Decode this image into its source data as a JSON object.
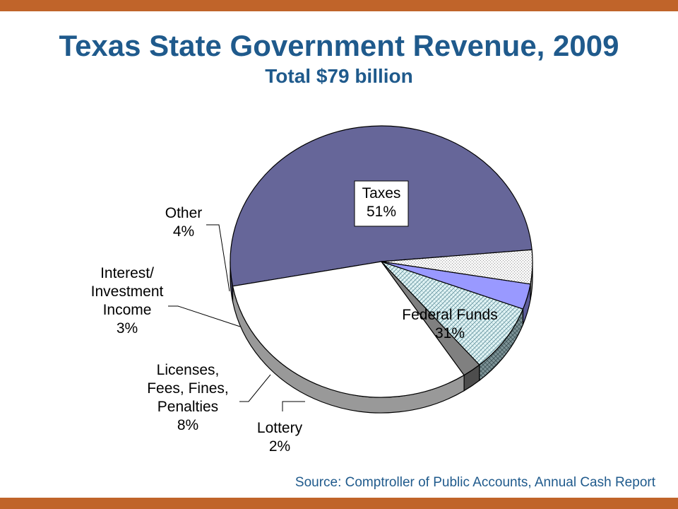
{
  "header": {
    "title": "Texas State Government Revenue, 2009",
    "subtitle": "Total $79 billion"
  },
  "footer": {
    "source": "Source: Comptroller of Public Accounts, Annual Cash Report"
  },
  "colors": {
    "accent_bar": "#C0642A",
    "title": "#1F5A8C",
    "source_text": "#1F5A8C",
    "taxes": "#666699",
    "federal": "#FFFFFF",
    "lottery": "#808080",
    "licenses": "#D9F0F2",
    "interest": "#9999FF",
    "other": "#EEEEEE"
  },
  "chart_data": {
    "type": "pie",
    "title": "Texas State Government Revenue, 2009",
    "subtitle": "Total $79 billion",
    "categories": [
      "Taxes",
      "Federal Funds",
      "Lottery",
      "Licenses, Fees, Fines, Penalties",
      "Interest/ Investment Income",
      "Other"
    ],
    "values": [
      51,
      31,
      2,
      8,
      3,
      4
    ],
    "units": "%",
    "slices": [
      {
        "name": "Taxes",
        "label_lines": [
          "Taxes",
          "51%"
        ],
        "value": 51,
        "color": "#666699",
        "pattern": "solid"
      },
      {
        "name": "Federal Funds",
        "label_lines": [
          "Federal Funds",
          "31%"
        ],
        "value": 31,
        "color": "#FFFFFF",
        "pattern": "solid"
      },
      {
        "name": "Lottery",
        "label_lines": [
          "Lottery",
          "2%"
        ],
        "value": 2,
        "color": "#808080",
        "pattern": "solid"
      },
      {
        "name": "Licenses, Fees, Fines, Penalties",
        "label_lines": [
          "Licenses,",
          "Fees, Fines,",
          "Penalties",
          "8%"
        ],
        "value": 8,
        "color": "#D9F0F2",
        "pattern": "crosshatch"
      },
      {
        "name": "Interest/ Investment Income",
        "label_lines": [
          "Interest/",
          "Investment",
          "Income",
          "3%"
        ],
        "value": 3,
        "color": "#9999FF",
        "pattern": "solid"
      },
      {
        "name": "Other",
        "label_lines": [
          "Other",
          "4%"
        ],
        "value": 4,
        "color": "#EEEEEE",
        "pattern": "dots"
      }
    ],
    "legend": "none",
    "style": "3d-pie"
  }
}
